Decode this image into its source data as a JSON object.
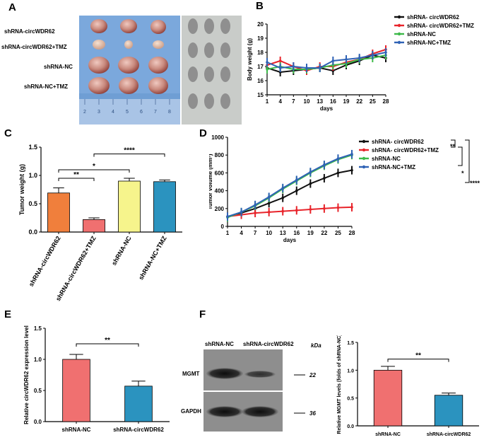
{
  "panels": {
    "A": "A",
    "B": "B",
    "C": "C",
    "D": "D",
    "E": "E",
    "F": "F"
  },
  "panel_a": {
    "row_labels": [
      "shRNA-circWDR62",
      "shRNA-circWDR62+TMZ",
      "shRNA-NC",
      "shRNA-NC+TMZ"
    ],
    "ruler_numbers": [
      "2",
      "3",
      "4",
      "5",
      "6",
      "7",
      "8"
    ]
  },
  "colors": {
    "black": "#111111",
    "red": "#e8242b",
    "green": "#3db94a",
    "blue": "#2f62b5",
    "orange": "#f07f3c",
    "pink": "#f07070",
    "yellow": "#f6f48c",
    "teal": "#2b93bf"
  },
  "chart_data": [
    {
      "id": "B",
      "type": "line",
      "ylabel": "Body weight (g)",
      "xlabel": "days",
      "x": [
        1,
        4,
        7,
        10,
        13,
        16,
        19,
        22,
        25,
        28
      ],
      "xticks": [
        "1",
        "4",
        "7",
        "10",
        "13",
        "16",
        "19",
        "22",
        "25",
        "28"
      ],
      "ylim": [
        15,
        20
      ],
      "yticks": [
        "15",
        "16",
        "17",
        "18",
        "19",
        "20"
      ],
      "series": [
        {
          "name": "shRNA- circWDR62",
          "color": "#111111",
          "values": [
            16.9,
            16.6,
            16.7,
            16.8,
            16.9,
            16.7,
            17.1,
            17.4,
            17.8,
            17.6
          ]
        },
        {
          "name": "shRNA- circWDR62+TMZ",
          "color": "#e8242b",
          "values": [
            17.1,
            17.4,
            17.0,
            16.7,
            17.0,
            17.0,
            17.3,
            17.5,
            17.9,
            18.2
          ]
        },
        {
          "name": "shRNA-NC",
          "color": "#3db94a",
          "values": [
            16.8,
            17.0,
            16.8,
            16.8,
            16.9,
            17.1,
            17.2,
            17.5,
            17.6,
            17.8
          ]
        },
        {
          "name": "shRNA-NC+TMZ",
          "color": "#2f62b5",
          "values": [
            17.3,
            16.9,
            17.0,
            16.9,
            16.9,
            17.4,
            17.5,
            17.6,
            17.8,
            18.0
          ]
        }
      ]
    },
    {
      "id": "C",
      "type": "bar",
      "ylabel": "Tumor weight (g)",
      "categories": [
        "shRNA-circWDR62",
        "shRNA-circWDR62+TMZ",
        "shRNA-NC",
        "shRNA-NC+TMZ"
      ],
      "values": [
        0.69,
        0.22,
        0.9,
        0.89
      ],
      "errors": [
        0.09,
        0.03,
        0.05,
        0.03
      ],
      "colors": [
        "#f07f3c",
        "#f07070",
        "#f6f48c",
        "#2b93bf"
      ],
      "ylim": [
        0,
        1.5
      ],
      "yticks": [
        "0.0",
        "0.5",
        "1.0",
        "1.5"
      ],
      "annotations": [
        {
          "from": 0,
          "to": 1,
          "label": "**"
        },
        {
          "from": 0,
          "to": 2,
          "label": "*"
        },
        {
          "from": 1,
          "to": 3,
          "label": "****"
        }
      ]
    },
    {
      "id": "D",
      "type": "line",
      "ylabel": "Tumor volume (mm³)",
      "xlabel": "days",
      "x": [
        1,
        4,
        7,
        10,
        13,
        16,
        19,
        22,
        25,
        28
      ],
      "xticks": [
        "1",
        "4",
        "7",
        "10",
        "13",
        "16",
        "19",
        "22",
        "25",
        "28"
      ],
      "ylim": [
        0,
        1000
      ],
      "yticks": [
        "0",
        "200",
        "400",
        "600",
        "800",
        "1000"
      ],
      "series": [
        {
          "name": "shRNA- circWDR62",
          "color": "#111111",
          "values": [
            110,
            150,
            200,
            260,
            320,
            400,
            480,
            540,
            600,
            630
          ]
        },
        {
          "name": "shRNA- circWDR62+TMZ",
          "color": "#e8242b",
          "values": [
            110,
            130,
            150,
            160,
            170,
            180,
            190,
            200,
            210,
            215
          ]
        },
        {
          "name": "shRNA-NC",
          "color": "#3db94a",
          "values": [
            100,
            160,
            230,
            320,
            420,
            510,
            600,
            680,
            750,
            800
          ]
        },
        {
          "name": "shRNA-NC+TMZ",
          "color": "#2f62b5",
          "values": [
            110,
            160,
            240,
            330,
            430,
            520,
            610,
            690,
            760,
            810
          ]
        }
      ],
      "significance": [
        "**",
        "*",
        "****"
      ]
    },
    {
      "id": "E",
      "type": "bar",
      "ylabel": "Relative circWDR62 expression level",
      "categories": [
        "shRNA-NC",
        "shRNA-circWDR62"
      ],
      "values": [
        1.0,
        0.57
      ],
      "errors": [
        0.08,
        0.08
      ],
      "colors": [
        "#f07070",
        "#2b93bf"
      ],
      "ylim": [
        0,
        1.5
      ],
      "yticks": [
        "0.0",
        "0.5",
        "1.0",
        "1.5"
      ],
      "significance": "**"
    },
    {
      "id": "F",
      "type": "bar",
      "ylabel": "Relative MGMT levels (folds of shRNA-NC)",
      "categories": [
        "shRNA-NC",
        "shRNA-circWDR62"
      ],
      "values": [
        1.0,
        0.55
      ],
      "errors": [
        0.07,
        0.04
      ],
      "colors": [
        "#f07070",
        "#2b93bf"
      ],
      "ylim": [
        0,
        1.5
      ],
      "yticks": [
        "0.0",
        "0.5",
        "1.0",
        "1.5"
      ],
      "significance": "**"
    }
  ],
  "blot": {
    "lanes": [
      "shRNA-NC",
      "shRNA-circWDR62"
    ],
    "kda_label": "kDa",
    "rows": [
      {
        "label": "MGMT",
        "kda": "22"
      },
      {
        "label": "GAPDH",
        "kda": "36"
      }
    ]
  }
}
